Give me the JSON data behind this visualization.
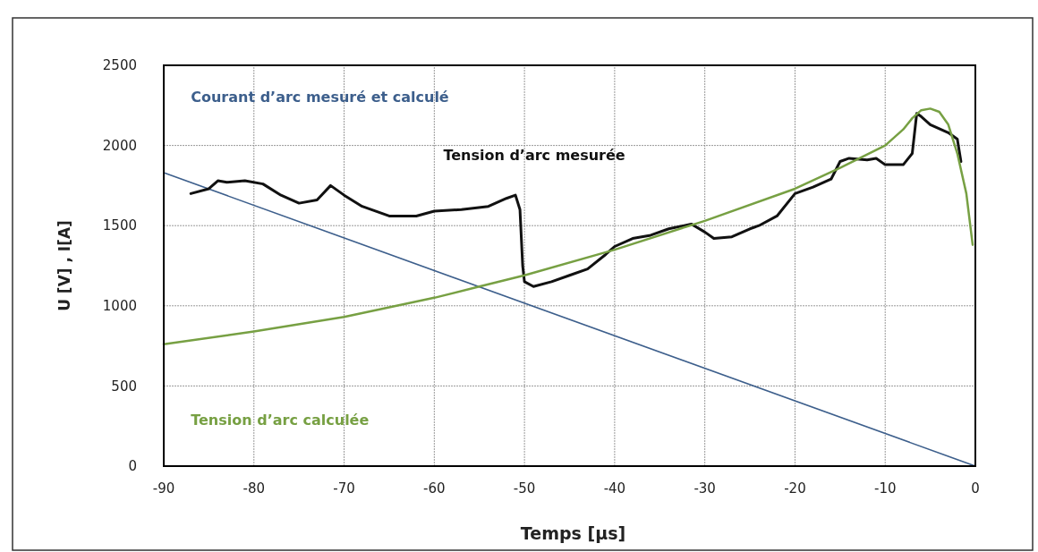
{
  "chart_data": {
    "type": "line",
    "xlabel": "Temps [µs]",
    "ylabel": "U [V] , I[A]",
    "xlim": [
      -90,
      0
    ],
    "xticks": [
      -90,
      -80,
      -70,
      -60,
      -50,
      -40,
      -30,
      -20,
      -10,
      0
    ],
    "ylim": [
      0,
      2500
    ],
    "yticks": [
      0,
      500,
      1000,
      1500,
      2000,
      2500
    ],
    "grid": true,
    "marker": "none",
    "line_style": "solid",
    "series": [
      {
        "name": "Courant d’arc mesuré et calculé",
        "color": "#3d5f8c",
        "x": [
          -90,
          0
        ],
        "values": [
          1830,
          0
        ]
      },
      {
        "name": "Tension d’arc mesurée",
        "color": "#111111",
        "x": [
          -87,
          -85,
          -84,
          -83,
          -81,
          -79,
          -77,
          -75,
          -73,
          -71.5,
          -70,
          -68,
          -65,
          -62,
          -60,
          -57,
          -54,
          -52,
          -51,
          -50.5,
          -50.2,
          -50,
          -49,
          -47,
          -45,
          -43,
          -41,
          -40,
          -38,
          -36,
          -34,
          -31.5,
          -30,
          -29,
          -27,
          -25,
          -24,
          -22,
          -20,
          -18,
          -16,
          -15,
          -14,
          -12,
          -11,
          -10,
          -8,
          -7,
          -6.5,
          -6,
          -5,
          -3,
          -2,
          -1.6
        ],
        "values": [
          1700,
          1730,
          1780,
          1770,
          1780,
          1760,
          1690,
          1640,
          1660,
          1750,
          1690,
          1620,
          1560,
          1560,
          1590,
          1600,
          1620,
          1670,
          1690,
          1600,
          1250,
          1150,
          1120,
          1150,
          1190,
          1230,
          1320,
          1370,
          1420,
          1440,
          1480,
          1510,
          1460,
          1420,
          1430,
          1480,
          1500,
          1560,
          1700,
          1740,
          1790,
          1900,
          1920,
          1910,
          1920,
          1880,
          1880,
          1950,
          2200,
          2180,
          2130,
          2080,
          2040,
          1900
        ]
      },
      {
        "name": "Tension d’arc calculée",
        "color": "#77a043",
        "x": [
          -90,
          -80,
          -70,
          -60,
          -55,
          -50,
          -40,
          -30,
          -20,
          -15,
          -10,
          -8,
          -7,
          -6,
          -5,
          -4,
          -3,
          -2,
          -1,
          -0.3
        ],
        "values": [
          760,
          840,
          930,
          1050,
          1120,
          1190,
          1350,
          1530,
          1730,
          1860,
          2000,
          2100,
          2170,
          2220,
          2230,
          2210,
          2130,
          1950,
          1700,
          1380
        ]
      }
    ]
  }
}
